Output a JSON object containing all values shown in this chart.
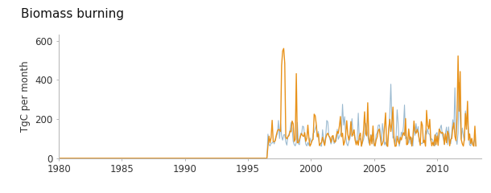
{
  "title": "Biomass burning",
  "ylabel": "TgC per month",
  "xlim": [
    1980,
    2013.5
  ],
  "ylim": [
    0,
    630
  ],
  "yticks": [
    0,
    200,
    400,
    600
  ],
  "xticks": [
    1980,
    1985,
    1990,
    1995,
    2000,
    2005,
    2010
  ],
  "line_color_orange": "#E8921A",
  "line_color_blue": "#8AAEC8",
  "bg_color": "#FFFFFF",
  "linewidth_orange": 1.0,
  "linewidth_blue": 0.8,
  "title_fontsize": 11,
  "tick_fontsize": 8.5,
  "ylabel_fontsize": 8.5
}
